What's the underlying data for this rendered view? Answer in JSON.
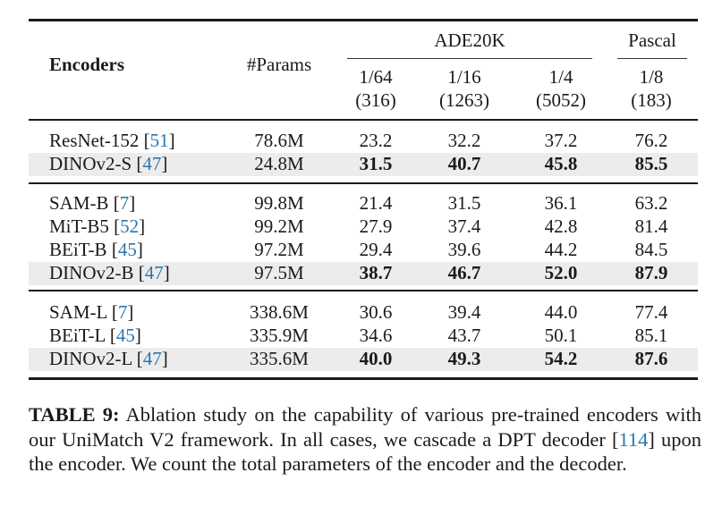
{
  "table": {
    "header": {
      "encoders": "Encoders",
      "params": "#Params",
      "group_ade": "ADE20K",
      "group_pascal": "Pascal",
      "splits": [
        {
          "ratio": "1/64",
          "count": "(316)"
        },
        {
          "ratio": "1/16",
          "count": "(1263)"
        },
        {
          "ratio": "1/4",
          "count": "(5052)"
        },
        {
          "ratio": "1/8",
          "count": "(183)"
        }
      ]
    },
    "groups": [
      [
        {
          "name": "ResNet-152",
          "cite": "51",
          "params": "78.6M",
          "values": [
            "23.2",
            "32.2",
            "37.2",
            "76.2"
          ],
          "highlight": false
        },
        {
          "name": "DINOv2-S",
          "cite": "47",
          "params": "24.8M",
          "values": [
            "31.5",
            "40.7",
            "45.8",
            "85.5"
          ],
          "highlight": true
        }
      ],
      [
        {
          "name": "SAM-B",
          "cite": "7",
          "params": "99.8M",
          "values": [
            "21.4",
            "31.5",
            "36.1",
            "63.2"
          ],
          "highlight": false
        },
        {
          "name": "MiT-B5",
          "cite": "52",
          "params": "99.2M",
          "values": [
            "27.9",
            "37.4",
            "42.8",
            "81.4"
          ],
          "highlight": false
        },
        {
          "name": "BEiT-B",
          "cite": "45",
          "params": "97.2M",
          "values": [
            "29.4",
            "39.6",
            "44.2",
            "84.5"
          ],
          "highlight": false
        },
        {
          "name": "DINOv2-B",
          "cite": "47",
          "params": "97.5M",
          "values": [
            "38.7",
            "46.7",
            "52.0",
            "87.9"
          ],
          "highlight": true
        }
      ],
      [
        {
          "name": "SAM-L",
          "cite": "7",
          "params": "338.6M",
          "values": [
            "30.6",
            "39.4",
            "44.0",
            "77.4"
          ],
          "highlight": false
        },
        {
          "name": "BEiT-L",
          "cite": "45",
          "params": "335.9M",
          "values": [
            "34.6",
            "43.7",
            "50.1",
            "85.1"
          ],
          "highlight": false
        },
        {
          "name": "DINOv2-L",
          "cite": "47",
          "params": "335.6M",
          "values": [
            "40.0",
            "49.3",
            "54.2",
            "87.6"
          ],
          "highlight": true
        }
      ]
    ]
  },
  "caption": {
    "label": "TABLE 9:",
    "text_before": " Ablation study on the capability of various pre-trained encoders with our UniMatch V2 framework. In all cases, we cascade a DPT decoder [",
    "cite": "114",
    "text_after": "] upon the encoder. We count the total parameters of the encoder and the decoder."
  },
  "colors": {
    "cite": "#2878b0",
    "highlight": "#ececec"
  }
}
